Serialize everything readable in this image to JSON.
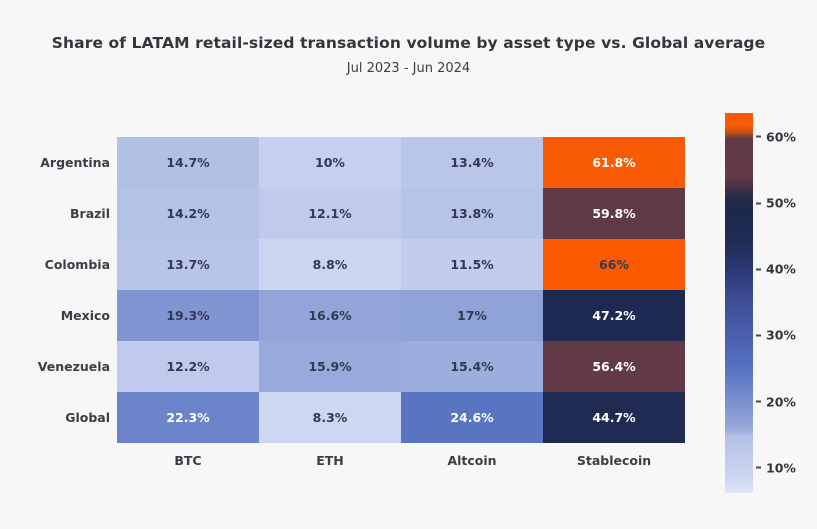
{
  "title": "Share of LATAM retail-sized transaction volume by asset type vs. Global average",
  "subtitle": "Jul 2023 - Jun 2024",
  "chart_data": {
    "type": "heatmap",
    "rows": [
      "Argentina",
      "Brazil",
      "Colombia",
      "Mexico",
      "Venezuela",
      "Global"
    ],
    "columns": [
      "BTC",
      "ETH",
      "Altcoin",
      "Stablecoin"
    ],
    "values": [
      [
        14.7,
        10,
        13.4,
        61.8
      ],
      [
        14.2,
        12.1,
        13.8,
        59.8
      ],
      [
        13.7,
        8.8,
        11.5,
        66
      ],
      [
        19.3,
        16.6,
        17,
        47.2
      ],
      [
        12.2,
        15.9,
        15.4,
        56.4
      ],
      [
        22.3,
        8.3,
        24.6,
        44.7
      ]
    ],
    "cell_labels": [
      [
        "14.7%",
        "10%",
        "13.4%",
        "61.8%"
      ],
      [
        "14.2%",
        "12.1%",
        "13.8%",
        "59.8%"
      ],
      [
        "13.7%",
        "8.8%",
        "11.5%",
        "66%"
      ],
      [
        "19.3%",
        "16.6%",
        "17%",
        "47.2%"
      ],
      [
        "12.2%",
        "15.9%",
        "15.4%",
        "56.4%"
      ],
      [
        "22.3%",
        "8.3%",
        "24.6%",
        "44.7%"
      ]
    ],
    "colorbar": {
      "min": 6.2,
      "max": 63.6,
      "tick_values": [
        60,
        50,
        40,
        30,
        20,
        10
      ],
      "tick_labels": [
        "60%",
        "50%",
        "40%",
        "30%",
        "20%",
        "10%"
      ]
    },
    "colormap_stops": [
      [
        6,
        "#dee6f7"
      ],
      [
        8.3,
        "#cdd7f1"
      ],
      [
        10,
        "#c6d0ee"
      ],
      [
        12,
        "#c0cbec"
      ],
      [
        14,
        "#b6c3e8"
      ],
      [
        14.8,
        "#b3c0e6"
      ],
      [
        15.4,
        "#9caedd"
      ],
      [
        16,
        "#97a9da"
      ],
      [
        17.5,
        "#8ca0d6"
      ],
      [
        20,
        "#7b91d0"
      ],
      [
        25,
        "#5672c0"
      ],
      [
        30,
        "#4a5fae"
      ],
      [
        35,
        "#3f4f96"
      ],
      [
        40,
        "#2c3874"
      ],
      [
        44.7,
        "#1f2b52"
      ],
      [
        47.2,
        "#1d2950"
      ],
      [
        50,
        "#1d2849"
      ],
      [
        52,
        "#3c3049"
      ],
      [
        54,
        "#643a46"
      ],
      [
        59.9,
        "#5f3a44"
      ],
      [
        60.6,
        "#c04e12"
      ],
      [
        61.4,
        "#f95a06"
      ],
      [
        66,
        "#fb5a01"
      ]
    ],
    "legend_position": "right",
    "grid": false
  },
  "colors": {
    "background": "#f7f7f7",
    "title_text": "#33363d",
    "axis_label_text": "#3b3e46",
    "cell_text_dark": "#303a52",
    "cell_text_light": "#ffffff",
    "accent_orange": "#f95a06",
    "accent_navy": "#1d2950",
    "accent_maroon": "#5f3a44"
  }
}
